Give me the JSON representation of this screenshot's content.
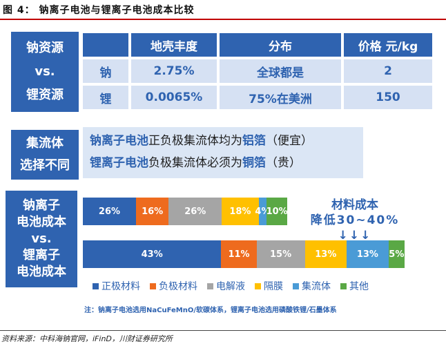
{
  "figure_title": "图 4： 钠离子电池与锂离子电池成本比较",
  "section1": {
    "label_lines": [
      "钠资源",
      "vs.",
      "锂资源"
    ],
    "headers": [
      "地壳丰度",
      "分布",
      "价格 元/kg"
    ],
    "rows": [
      {
        "element": "钠",
        "abundance": "2.75%",
        "distribution": "全球都是",
        "price": "2"
      },
      {
        "element": "锂",
        "abundance": "0.0065%",
        "distribution": "75%在美洲",
        "price": "150"
      }
    ]
  },
  "section2": {
    "label_lines": [
      "集流体",
      "选择不同"
    ],
    "line1": {
      "subject": "钠离子电池",
      "mid": "正负极集流体均为",
      "material": "铝箔",
      "tail": "（便宜）"
    },
    "line2": {
      "subject": "锂离子电池",
      "mid": "负极集流体必须为",
      "material": "铜箔",
      "tail": "（贵）"
    }
  },
  "section3": {
    "label_lines": [
      "钠离子",
      "电池成本",
      "vs.",
      "锂离子",
      "电池成本"
    ],
    "callout_lines": [
      "材料成本",
      "降低30~40% ↓↓↓"
    ]
  },
  "chart_data": {
    "type": "bar",
    "orientation": "horizontal-stacked-100",
    "categories": [
      "钠离子电池成本",
      "锂离子电池成本"
    ],
    "series": [
      {
        "name": "正极材料",
        "color": "#2f63b0",
        "values": [
          26,
          43
        ],
        "labels": [
          "26%",
          "43%"
        ]
      },
      {
        "name": "负极材料",
        "color": "#ee6b1e",
        "values": [
          16,
          11
        ],
        "labels": [
          "16%",
          "11%"
        ]
      },
      {
        "name": "电解液",
        "color": "#a5a5a5",
        "values": [
          26,
          15
        ],
        "labels": [
          "26%",
          "15%"
        ]
      },
      {
        "name": "隔膜",
        "color": "#ffc000",
        "values": [
          18,
          13
        ],
        "labels": [
          "18%",
          "13%"
        ]
      },
      {
        "name": "集流体",
        "color": "#4a9bd6",
        "values": [
          4,
          13
        ],
        "labels": [
          "4%",
          "13%"
        ]
      },
      {
        "name": "其他",
        "color": "#5aa845",
        "values": [
          10,
          5
        ],
        "labels": [
          "10%",
          "5%"
        ]
      }
    ],
    "legend": "bottom",
    "note": "注：钠离子电池选用NaCuFeMnO/软碳体系，锂离子电池选用磷酸铁锂/石墨体系"
  },
  "source": "资料来源：中科海钠官网，iFinD，川财证券研究所"
}
